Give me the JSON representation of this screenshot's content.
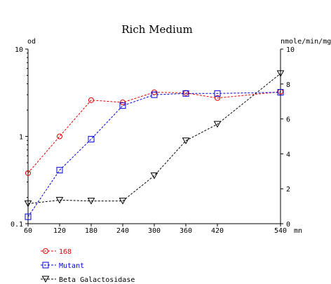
{
  "chart_data": {
    "type": "line",
    "title": "Rich Medium",
    "y_left_label": "od",
    "y_right_label": "nmole/min/mg",
    "x_unit": "mn",
    "x_ticks": [
      "60",
      "120",
      "180",
      "240",
      "300",
      "360",
      "420",
      "540"
    ],
    "y_left_ticks": [
      "10",
      "1",
      "0.1"
    ],
    "y_left_scale": "log",
    "y_left_range": [
      0.1,
      10
    ],
    "y_right_ticks": [
      "10",
      "8",
      "6",
      "4",
      "2",
      "0"
    ],
    "y_right_range": [
      0,
      10
    ],
    "x_range": [
      60,
      540
    ],
    "grid": false,
    "legend_position": "bottom-left",
    "series": [
      {
        "name": "168",
        "axis": "left",
        "color": "#e00000",
        "marker": "circle",
        "x": [
          60,
          120,
          180,
          240,
          300,
          360,
          420,
          540
        ],
        "y": [
          0.38,
          1.0,
          2.6,
          2.45,
          3.2,
          3.15,
          2.75,
          3.25
        ]
      },
      {
        "name": "Mutant",
        "axis": "left",
        "color": "#0000e0",
        "marker": "square",
        "x": [
          60,
          120,
          180,
          240,
          300,
          360,
          420,
          540
        ],
        "y": [
          0.12,
          0.41,
          0.93,
          2.25,
          3.0,
          3.1,
          3.1,
          3.2
        ]
      },
      {
        "name": "Beta Galactosidase",
        "axis": "right",
        "color": "#000000",
        "marker": "triangle-down",
        "x": [
          60,
          120,
          180,
          240,
          300,
          360,
          420,
          540
        ],
        "y": [
          1.15,
          1.35,
          1.3,
          1.3,
          2.75,
          4.75,
          5.7,
          8.6
        ]
      }
    ]
  }
}
